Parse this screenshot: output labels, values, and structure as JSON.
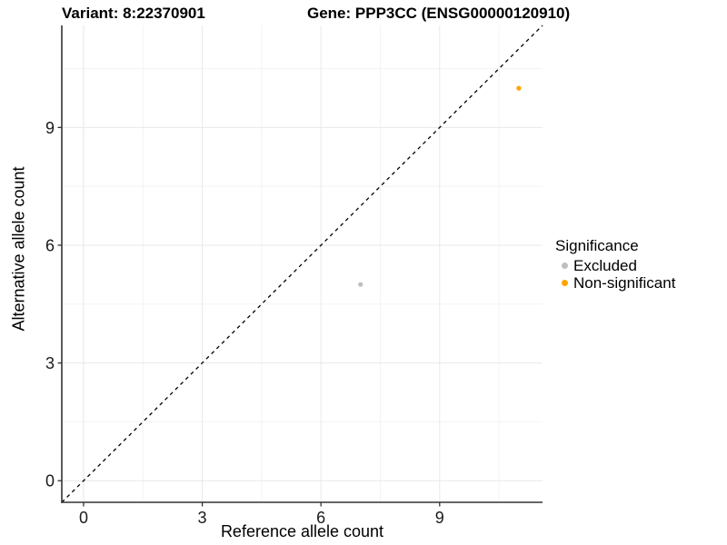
{
  "chart_data": {
    "type": "scatter",
    "title_left": "Variant: 8:22370901",
    "title_right": "Gene: PPP3CC (ENSG00000120910)",
    "xlabel": "Reference allele count",
    "ylabel": "Alternative allele count",
    "xlim": [
      -0.55,
      11.6
    ],
    "ylim": [
      -0.55,
      11.6
    ],
    "xticks": [
      0,
      3,
      6,
      9
    ],
    "yticks": [
      0,
      3,
      6,
      9
    ],
    "x_minor_gridlines": [
      1.5,
      4.5,
      7.5,
      10.5
    ],
    "y_minor_gridlines": [
      1.5,
      4.5,
      7.5,
      10.5
    ],
    "grid": "on",
    "identity_line": {
      "equation": "y = x",
      "style": "dashed",
      "color": "#000000"
    },
    "legend": {
      "title": "Significance",
      "position": "right"
    },
    "series": [
      {
        "name": "Excluded",
        "color": "#bebebe",
        "points": [
          {
            "x": 7,
            "y": 5
          }
        ]
      },
      {
        "name": "Non-significant",
        "color": "#ffa500",
        "points": [
          {
            "x": 11,
            "y": 10
          }
        ]
      }
    ]
  },
  "colors": {
    "background": "#ffffff",
    "axis_line": "#333333",
    "tick_label": "#1a1a1a",
    "grid_major": "#e8e8e8",
    "grid_minor": "#f3f3f3",
    "excluded_point": "#bebebe",
    "non_significant_point": "#ffa500"
  }
}
